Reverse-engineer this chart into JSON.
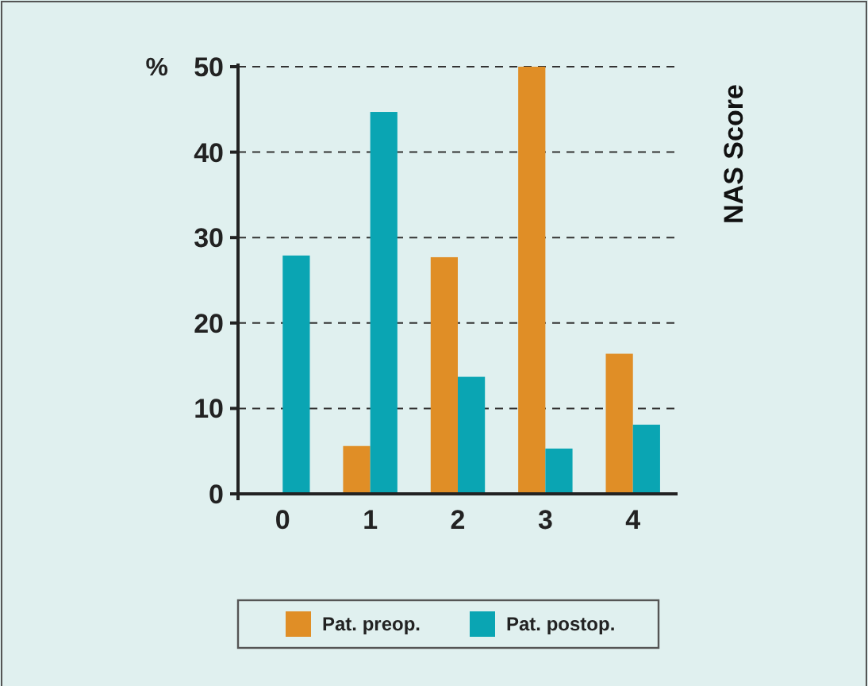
{
  "chart_data": {
    "type": "bar",
    "categories": [
      "0",
      "1",
      "2",
      "3",
      "4"
    ],
    "series": [
      {
        "name": "Pat. preop.",
        "color": "#e08e26",
        "values": [
          0,
          5.6,
          27.7,
          50,
          16.4
        ]
      },
      {
        "name": "Pat. postop.",
        "color": "#0aa5b3",
        "values": [
          27.9,
          44.7,
          13.7,
          5.3,
          8.1
        ]
      }
    ],
    "ylabel": "%",
    "annotations": [
      "NAS Score"
    ],
    "ylim": [
      0,
      50
    ],
    "yticks": [
      0,
      10,
      20,
      30,
      40,
      50
    ],
    "grid": "y",
    "legend": "bottom"
  }
}
